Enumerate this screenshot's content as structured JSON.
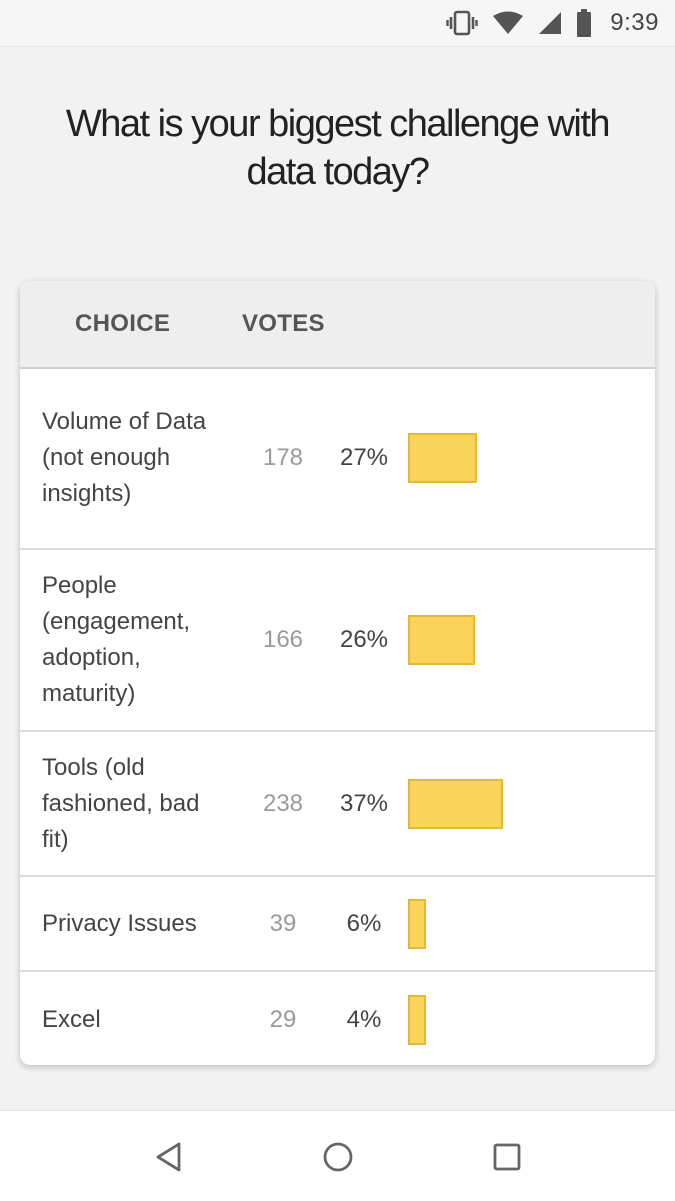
{
  "status_bar": {
    "time": "9:39",
    "icons": [
      "vibrate-icon",
      "wifi-icon",
      "cellular-signal-icon",
      "battery-icon"
    ]
  },
  "poll": {
    "question": "What is your biggest challenge with data today?",
    "headers": {
      "choice": "CHOICE",
      "votes": "VOTES"
    },
    "accent_color": "#f9d458",
    "rows": [
      {
        "choice": "Volume of Data (not enough insights)",
        "votes": "178",
        "percent": "27%",
        "fraction": 0.27
      },
      {
        "choice": "People (engagement, adoption, maturity)",
        "votes": "166",
        "percent": "26%",
        "fraction": 0.26
      },
      {
        "choice": "Tools (old fashioned, bad fit)",
        "votes": "238",
        "percent": "37%",
        "fraction": 0.37
      },
      {
        "choice": "Privacy Issues",
        "votes": "39",
        "percent": "6%",
        "fraction": 0.06
      },
      {
        "choice": "Excel",
        "votes": "29",
        "percent": "4%",
        "fraction": 0.04
      }
    ]
  },
  "nav_bar": {
    "buttons": [
      "back-icon",
      "home-icon",
      "recents-icon"
    ]
  }
}
